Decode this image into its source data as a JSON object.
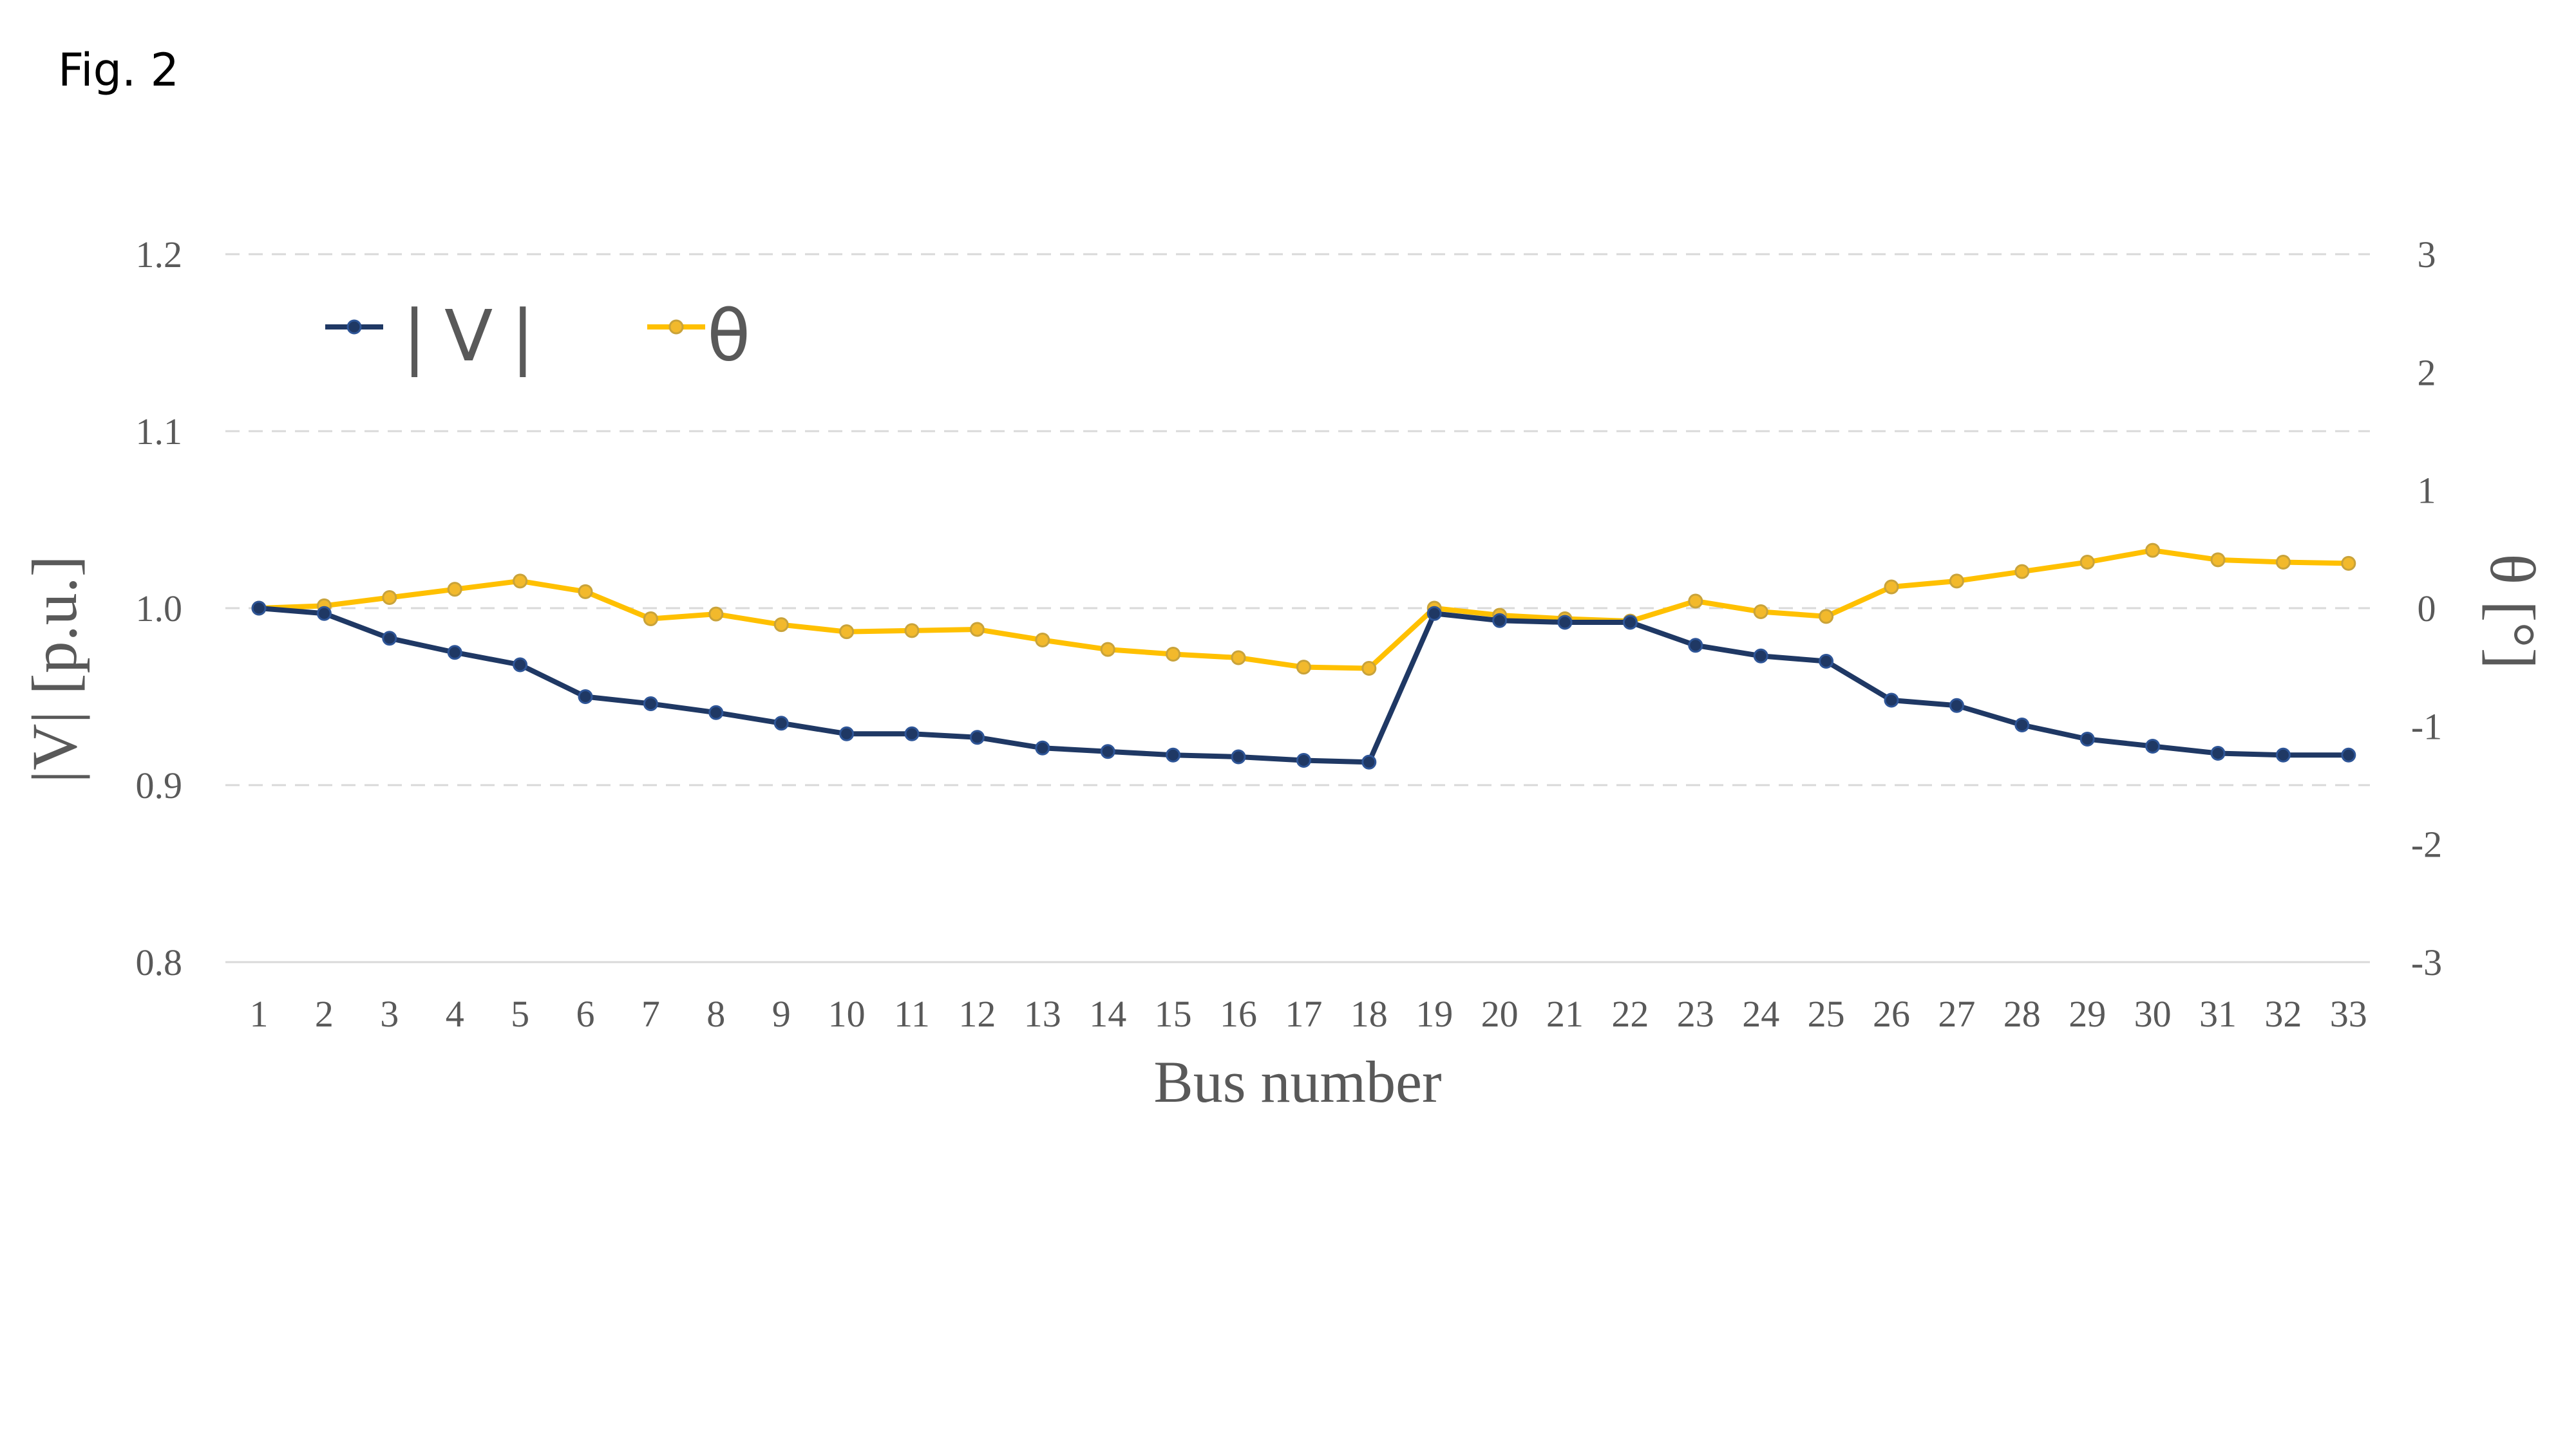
{
  "figure_label": "Fig. 2",
  "chart_data": {
    "type": "line",
    "xlabel": "Bus number",
    "ylabel_left": "|V| [p.u.]",
    "ylabel_right": "θ [°]",
    "categories": [
      "1",
      "2",
      "3",
      "4",
      "5",
      "6",
      "7",
      "8",
      "9",
      "10",
      "11",
      "12",
      "13",
      "14",
      "15",
      "16",
      "17",
      "18",
      "19",
      "20",
      "21",
      "22",
      "23",
      "24",
      "25",
      "26",
      "27",
      "28",
      "29",
      "30",
      "31",
      "32",
      "33"
    ],
    "y_left": {
      "lim": [
        0.8,
        1.2
      ],
      "ticks": [
        "0.8",
        "0.9",
        "1.0",
        "1.1",
        "1.2"
      ]
    },
    "y_right": {
      "lim": [
        -3,
        3
      ],
      "ticks": [
        "-3",
        "-2",
        "-1",
        "0",
        "1",
        "2",
        "3"
      ]
    },
    "grid": true,
    "legend_placement": "top-left",
    "series": [
      {
        "name": "|V|",
        "axis": "left",
        "color": "#1f3864",
        "values": [
          1.0,
          0.997,
          0.983,
          0.975,
          0.968,
          0.95,
          0.946,
          0.941,
          0.935,
          0.929,
          0.929,
          0.927,
          0.921,
          0.919,
          0.917,
          0.916,
          0.914,
          0.913,
          0.997,
          0.993,
          0.992,
          0.992,
          0.979,
          0.973,
          0.97,
          0.948,
          0.945,
          0.934,
          0.926,
          0.922,
          0.918,
          0.917,
          0.917
        ]
      },
      {
        "name": "θ",
        "axis": "right",
        "color": "#ffc000",
        "values": [
          0.0,
          0.02,
          0.09,
          0.16,
          0.23,
          0.14,
          -0.09,
          -0.05,
          -0.14,
          -0.2,
          -0.19,
          -0.18,
          -0.27,
          -0.35,
          -0.39,
          -0.42,
          -0.5,
          -0.51,
          0.0,
          -0.06,
          -0.09,
          -0.11,
          0.06,
          -0.03,
          -0.07,
          0.18,
          0.23,
          0.31,
          0.39,
          0.49,
          0.41,
          0.39,
          0.38
        ]
      }
    ]
  }
}
